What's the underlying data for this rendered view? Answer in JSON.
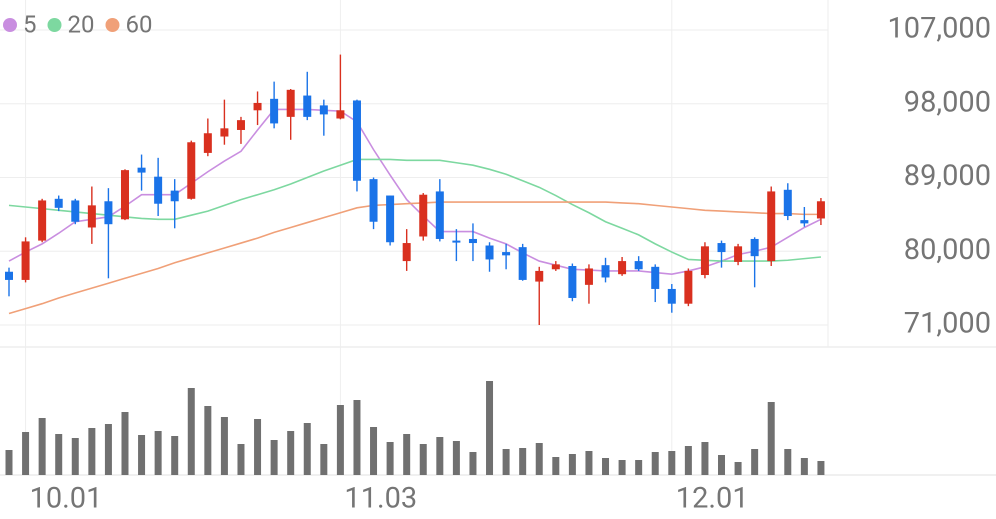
{
  "chart_data": {
    "type": "candlestick",
    "categories": [
      null,
      "10.01",
      null,
      null,
      null,
      null,
      null,
      null,
      null,
      null,
      null,
      null,
      null,
      null,
      null,
      null,
      null,
      null,
      null,
      null,
      "11.03",
      null,
      null,
      null,
      null,
      null,
      null,
      null,
      null,
      null,
      null,
      null,
      null,
      null,
      null,
      null,
      null,
      null,
      null,
      null,
      "12.01",
      null,
      null,
      null,
      null,
      null,
      null,
      null,
      null,
      null
    ],
    "open": [
      77500,
      76500,
      81300,
      86400,
      86200,
      82900,
      86100,
      83900,
      90200,
      89100,
      87400,
      86400,
      92000,
      94000,
      94800,
      97200,
      98600,
      96400,
      99000,
      97800,
      96200,
      98400,
      88800,
      86800,
      78800,
      81800,
      87300,
      81300,
      81500,
      80700,
      79900,
      80500,
      76300,
      77800,
      78200,
      75900,
      78300,
      77200,
      78800,
      78100,
      75400,
      73600,
      77100,
      81000,
      78700,
      81500,
      78800,
      87500,
      83800,
      84000
    ],
    "high": [
      78000,
      81700,
      86400,
      86800,
      86400,
      87900,
      87700,
      90000,
      91800,
      91400,
      88800,
      93500,
      96200,
      98500,
      96400,
      99500,
      100700,
      99800,
      101900,
      98500,
      104000,
      98500,
      89000,
      86800,
      82700,
      87100,
      88800,
      82700,
      83400,
      81100,
      80900,
      80900,
      78100,
      78800,
      78500,
      78400,
      79200,
      79300,
      79400,
      78400,
      76000,
      77900,
      81100,
      81300,
      80900,
      81700,
      87900,
      88300,
      85400,
      86500
    ],
    "low": [
      74500,
      76200,
      81100,
      84900,
      83300,
      80900,
      76700,
      83800,
      87400,
      84300,
      82800,
      86300,
      91600,
      93000,
      93100,
      95400,
      95000,
      93600,
      96000,
      94100,
      96100,
      87300,
      82700,
      80700,
      77600,
      81300,
      81200,
      78800,
      78800,
      77500,
      77800,
      76400,
      71000,
      77600,
      73900,
      73600,
      76200,
      77000,
      77600,
      73800,
      72500,
      73300,
      76700,
      78000,
      78300,
      75600,
      78200,
      83800,
      83000,
      83200
    ],
    "close": [
      76500,
      81200,
      86200,
      85300,
      83600,
      85600,
      83300,
      89900,
      89600,
      85800,
      86100,
      93300,
      94400,
      95000,
      96000,
      98100,
      95600,
      99700,
      96400,
      96700,
      97200,
      88600,
      83600,
      81100,
      81000,
      86900,
      81500,
      81100,
      81000,
      79000,
      79500,
      76500,
      77600,
      78400,
      74300,
      77900,
      76800,
      78800,
      77800,
      75400,
      73600,
      77600,
      80600,
      79900,
      80600,
      79400,
      87300,
      84300,
      83400,
      86100
    ],
    "volume": [
      25,
      43,
      57,
      41,
      37,
      47,
      51,
      63,
      40,
      44,
      39,
      87,
      69,
      58,
      31,
      56,
      35,
      44,
      52,
      31,
      70,
      75,
      48,
      33,
      41,
      31,
      38,
      34,
      23,
      94,
      26,
      27,
      32,
      18,
      21,
      24,
      17,
      15,
      15,
      23,
      24,
      29,
      33,
      20,
      13,
      26,
      73,
      26,
      17,
      14
    ],
    "vlim": [
      0,
      120
    ],
    "up_color": "#d9301f",
    "down_color": "#1a73e8",
    "volume_color": "#707070",
    "series": [
      {
        "name": "5",
        "color": "#c98ee0",
        "values": [
          78800,
          79900,
          80900,
          82200,
          83600,
          83900,
          84200,
          85500,
          86900,
          86900,
          86900,
          88300,
          89700,
          91000,
          92200,
          94800,
          97300,
          97300,
          97300,
          97200,
          97100,
          95800,
          92400,
          89300,
          86300,
          84300,
          82400,
          82400,
          82400,
          81600,
          80900,
          79800,
          78800,
          78300,
          77800,
          77700,
          77600,
          77600,
          77600,
          77400,
          77200,
          77600,
          78100,
          78800,
          79600,
          80000,
          80500,
          81700,
          82900,
          83900
        ]
      },
      {
        "name": "20",
        "color": "#7dd8a0",
        "values": [
          85600,
          85400,
          85200,
          85000,
          84800,
          84600,
          84400,
          84200,
          84000,
          83900,
          83900,
          84400,
          84900,
          85600,
          86300,
          86900,
          87500,
          88200,
          89000,
          89800,
          90500,
          91200,
          91200,
          91200,
          91100,
          91100,
          91100,
          90800,
          90500,
          90000,
          89400,
          88600,
          87800,
          86800,
          85700,
          84700,
          83600,
          82800,
          82000,
          80900,
          79900,
          79000,
          78900,
          78800,
          78800,
          78800,
          78800,
          78900,
          79100,
          79300
        ]
      },
      {
        "name": "60",
        "color": "#f0a078",
        "values": [
          72400,
          73000,
          73600,
          74300,
          74900,
          75500,
          76100,
          76700,
          77300,
          77900,
          78600,
          79200,
          79800,
          80400,
          81000,
          81600,
          82300,
          82900,
          83500,
          84100,
          84700,
          85300,
          85600,
          85700,
          85800,
          85900,
          86000,
          86000,
          86000,
          86000,
          86000,
          86000,
          86000,
          86000,
          86000,
          86000,
          86000,
          85900,
          85800,
          85600,
          85400,
          85200,
          85000,
          84900,
          84800,
          84700,
          84600,
          84600,
          84500,
          84500
        ]
      }
    ],
    "ylim": [
      71000,
      107000
    ],
    "yticks": [
      {
        "value": 71000,
        "label": "71,000"
      },
      {
        "value": 80000,
        "label": "80,000"
      },
      {
        "value": 89000,
        "label": "89,000"
      },
      {
        "value": 98000,
        "label": "98,000"
      },
      {
        "value": 107000,
        "label": "107,000"
      }
    ],
    "grid": true
  }
}
